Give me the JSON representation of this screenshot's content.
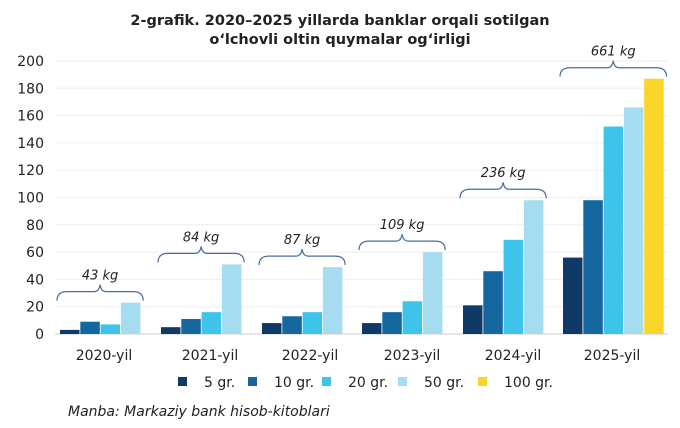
{
  "chart_data": {
    "type": "bar",
    "title": "2-grafik. 2020–2025 yillarda banklar orqali sotilgan o‘lchovli oltin quymalar og‘irligi",
    "title_lines": [
      "2-grafik. 2020–2025 yillarda banklar orqali sotilgan",
      "o‘lchovli oltin quymalar og‘irligi"
    ],
    "categories": [
      "2020-yil",
      "2021-yil",
      "2022-yil",
      "2023-yil",
      "2024-yil",
      "2025-yil"
    ],
    "series": [
      {
        "name": "5 gr.",
        "color": "#0f3a66",
        "values": [
          3,
          5,
          8,
          8,
          21,
          56
        ]
      },
      {
        "name": "10 gr.",
        "color": "#13669e",
        "values": [
          9,
          11,
          13,
          16,
          46,
          98
        ]
      },
      {
        "name": "20 gr.",
        "color": "#3ec3ea",
        "values": [
          7,
          16,
          16,
          24,
          69,
          152
        ]
      },
      {
        "name": "50 gr.",
        "color": "#a6dcef",
        "values": [
          23,
          51,
          49,
          60,
          98,
          166
        ]
      },
      {
        "name": "100 gr.",
        "color": "#fbd42a",
        "values": [
          null,
          null,
          null,
          null,
          null,
          187
        ]
      }
    ],
    "totals": [
      "43 kg",
      "84 kg",
      "87 kg",
      "109 kg",
      "236 kg",
      "661 kg"
    ],
    "ylim": [
      0,
      200
    ],
    "yticks": [
      0,
      20,
      40,
      60,
      80,
      100,
      120,
      140,
      160,
      180,
      200
    ],
    "grid": true,
    "legend": "bottom",
    "source": "Manba: Markaziy bank hisob-kitoblari"
  }
}
